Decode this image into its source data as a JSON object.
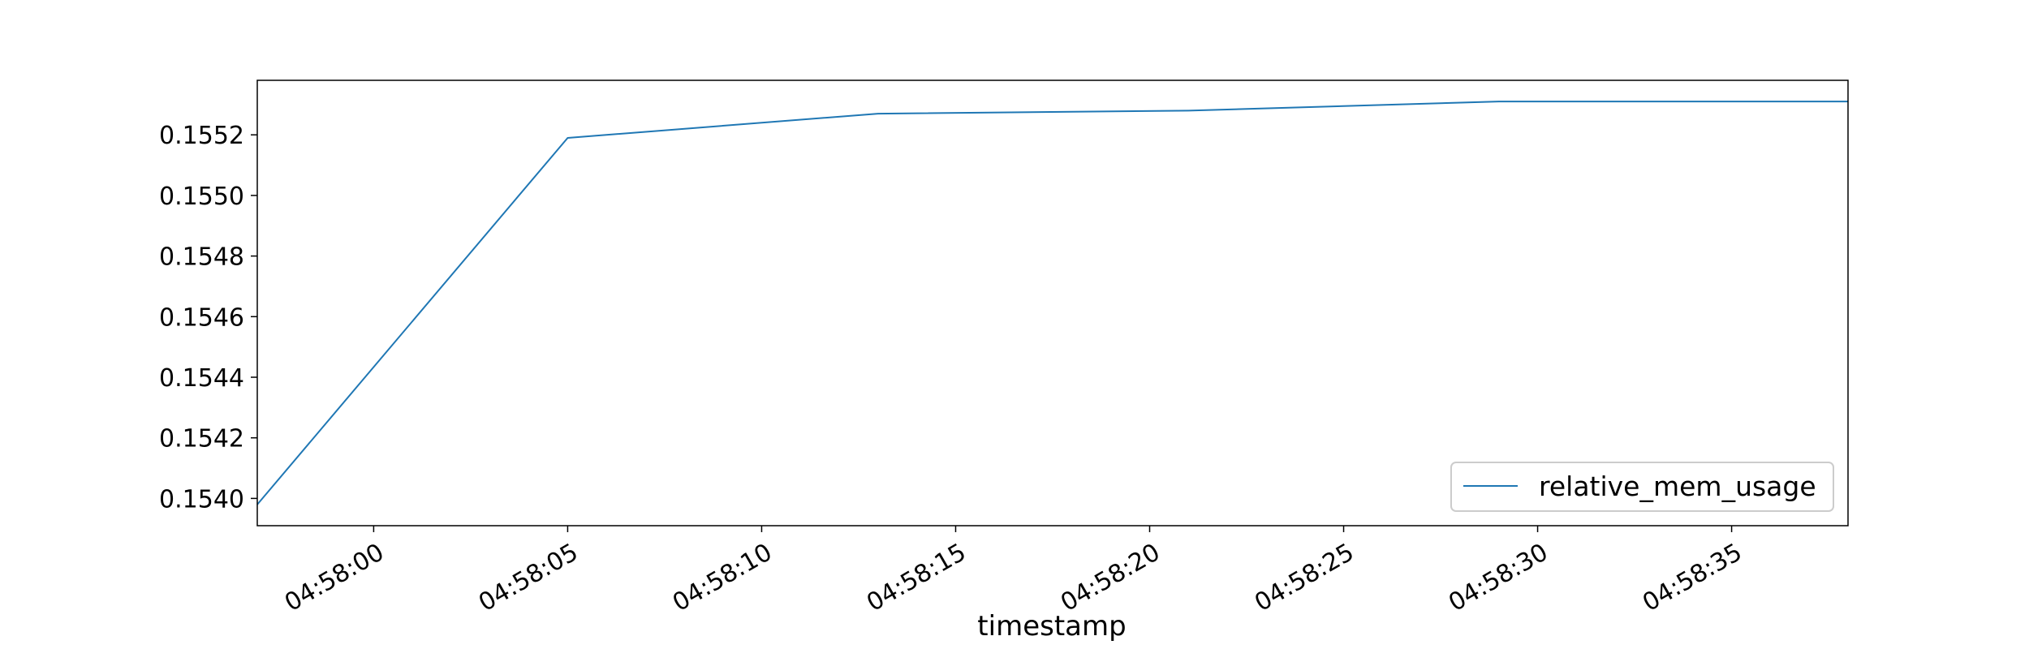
{
  "chart_data": {
    "type": "line",
    "title": "",
    "xlabel": "timestamp",
    "ylabel": "",
    "x_type": "time",
    "xlim": [
      "04:57:57",
      "04:58:38"
    ],
    "ylim": [
      0.15391,
      0.15538
    ],
    "x_ticks": [
      "04:58:00",
      "04:58:05",
      "04:58:10",
      "04:58:15",
      "04:58:20",
      "04:58:25",
      "04:58:30",
      "04:58:35"
    ],
    "y_ticks": [
      "0.1540",
      "0.1542",
      "0.1544",
      "0.1546",
      "0.1548",
      "0.1550",
      "0.1552"
    ],
    "grid": false,
    "legend_position": "lower right",
    "series": [
      {
        "name": "relative_mem_usage",
        "color": "#1f77b4",
        "x": [
          "04:57:57",
          "04:58:05",
          "04:58:13",
          "04:58:21",
          "04:58:29",
          "04:58:38"
        ],
        "y": [
          0.15398,
          0.15519,
          0.15527,
          0.15528,
          0.15531,
          0.15531
        ]
      }
    ]
  }
}
